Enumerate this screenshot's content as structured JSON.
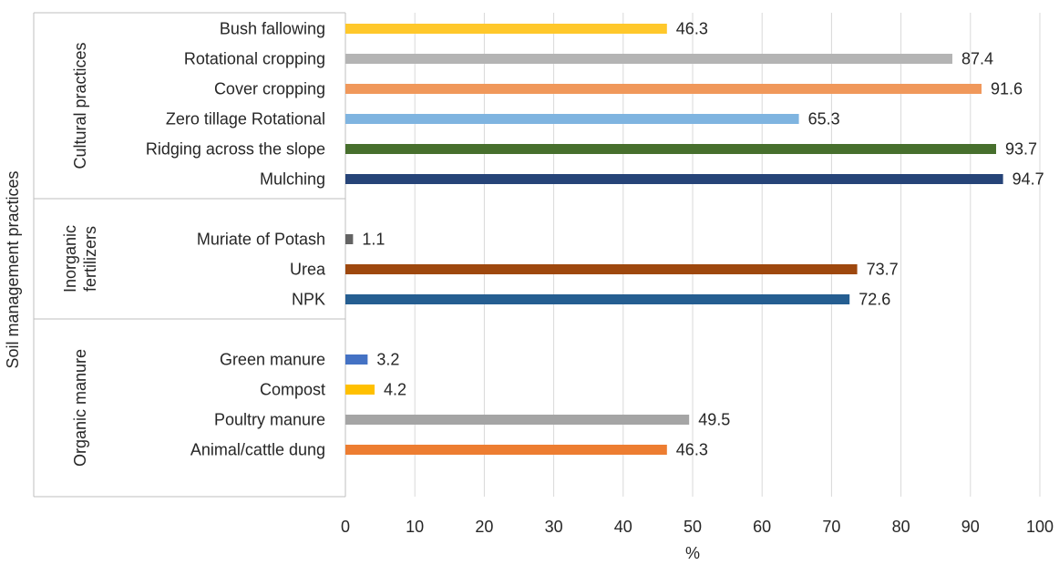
{
  "chart_data": {
    "type": "bar",
    "orientation": "horizontal",
    "xlabel": "%",
    "ylabel": "Soil management practices",
    "xlim": [
      0,
      100
    ],
    "xticks": [
      0,
      10,
      20,
      30,
      40,
      50,
      60,
      70,
      80,
      90,
      100
    ],
    "grid": "vertical",
    "groups": [
      {
        "name": "Cultural practices",
        "items": [
          {
            "label": "Bush fallowing",
            "value": 46.3,
            "value_label": "46.3",
            "color": "#ffc82b"
          },
          {
            "label": "Rotational cropping",
            "value": 87.4,
            "value_label": "87.4",
            "color": "#b4b4b4"
          },
          {
            "label": "Cover cropping",
            "value": 91.6,
            "value_label": "91.6",
            "color": "#f0985b"
          },
          {
            "label": "Zero tillage Rotational",
            "value": 65.3,
            "value_label": "65.3",
            "color": "#7fb4e0"
          },
          {
            "label": "Ridging across the slope",
            "value": 93.7,
            "value_label": "93.7",
            "color": "#476f2d"
          },
          {
            "label": "Mulching",
            "value": 94.7,
            "value_label": "94.7",
            "color": "#264478"
          }
        ]
      },
      {
        "name": "Inorganic\nfertilizers",
        "items": [
          {
            "label": "Muriate of Potash",
            "value": 1.1,
            "value_label": "1.1",
            "color": "#636363"
          },
          {
            "label": "Urea",
            "value": 73.7,
            "value_label": "73.7",
            "color": "#9e480e"
          },
          {
            "label": "NPK",
            "value": 72.6,
            "value_label": "72.6",
            "color": "#255e91"
          }
        ]
      },
      {
        "name": "Organic manure",
        "items": [
          {
            "label": "Green manure",
            "value": 3.2,
            "value_label": "3.2",
            "color": "#4472c4"
          },
          {
            "label": "Compost",
            "value": 4.2,
            "value_label": "4.2",
            "color": "#ffc000"
          },
          {
            "label": "Poultry manure",
            "value": 49.5,
            "value_label": "49.5",
            "color": "#a5a5a5"
          },
          {
            "label": "Animal/cattle dung",
            "value": 46.3,
            "value_label": "46.3",
            "color": "#ed7d31"
          }
        ]
      }
    ]
  }
}
